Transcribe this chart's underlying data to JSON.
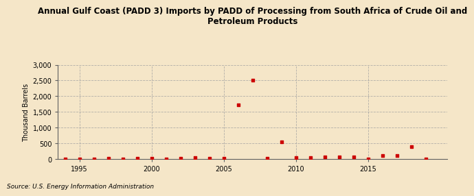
{
  "title": "Annual Gulf Coast (PADD 3) Imports by PADD of Processing from South Africa of Crude Oil and\nPetroleum Products",
  "ylabel": "Thousand Barrels",
  "source": "Source: U.S. Energy Information Administration",
  "background_color": "#f5e6c8",
  "plot_background_color": "#f5e6c8",
  "marker_color": "#cc0000",
  "xlim": [
    1993.5,
    2020.5
  ],
  "ylim": [
    0,
    3000
  ],
  "yticks": [
    0,
    500,
    1000,
    1500,
    2000,
    2500,
    3000
  ],
  "xticks": [
    1995,
    2000,
    2005,
    2010,
    2015
  ],
  "data": {
    "1994": 5,
    "1995": 5,
    "1996": 5,
    "1997": 20,
    "1998": 5,
    "1999": 20,
    "2000": 30,
    "2001": 5,
    "2002": 30,
    "2003": 40,
    "2004": 20,
    "2005": 20,
    "2006": 1720,
    "2007": 2500,
    "2008": 30,
    "2009": 540,
    "2010": 40,
    "2011": 50,
    "2012": 60,
    "2013": 60,
    "2014": 60,
    "2015": 10,
    "2016": 100,
    "2017": 120,
    "2018": 390,
    "2019": 10
  }
}
